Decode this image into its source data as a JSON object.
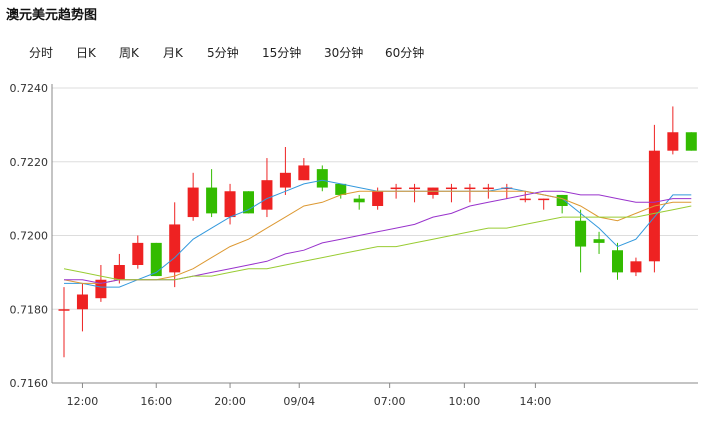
{
  "header": {
    "title": "澳元美元趋势图"
  },
  "tabs": [
    "分时",
    "日K",
    "周K",
    "月K",
    "5分钟",
    "15分钟",
    "30分钟",
    "60分钟"
  ],
  "chart_data": {
    "type": "candlestick",
    "title": "澳元美元趋势图",
    "ylim": [
      0.716,
      0.724
    ],
    "yticks": [
      "0.7240",
      "0.7220",
      "0.7200",
      "0.7180",
      "0.7160"
    ],
    "xticks": [
      {
        "label": "12:00",
        "index": 1
      },
      {
        "label": "16:00",
        "index": 5
      },
      {
        "label": "20:00",
        "index": 9
      },
      {
        "label": "09/04",
        "index": 12.75
      },
      {
        "label": "07:00",
        "index": 17.65
      },
      {
        "label": "10:00",
        "index": 21.7
      },
      {
        "label": "14:00",
        "index": 25.55
      }
    ],
    "up_color": "#ee2222",
    "down_color": "#33bb00",
    "candles": [
      {
        "o": 0.718,
        "h": 0.7186,
        "l": 0.7167,
        "c": 0.718
      },
      {
        "o": 0.718,
        "h": 0.7187,
        "l": 0.7174,
        "c": 0.7184
      },
      {
        "o": 0.7183,
        "h": 0.7192,
        "l": 0.7182,
        "c": 0.7188
      },
      {
        "o": 0.7188,
        "h": 0.7195,
        "l": 0.7187,
        "c": 0.7192
      },
      {
        "o": 0.7192,
        "h": 0.72,
        "l": 0.7191,
        "c": 0.7198
      },
      {
        "o": 0.7198,
        "h": 0.7198,
        "l": 0.7189,
        "c": 0.7189
      },
      {
        "o": 0.719,
        "h": 0.7209,
        "l": 0.7186,
        "c": 0.7203
      },
      {
        "o": 0.7205,
        "h": 0.7217,
        "l": 0.7204,
        "c": 0.7213
      },
      {
        "o": 0.7213,
        "h": 0.7218,
        "l": 0.7205,
        "c": 0.7206
      },
      {
        "o": 0.7205,
        "h": 0.7214,
        "l": 0.7203,
        "c": 0.7212
      },
      {
        "o": 0.7212,
        "h": 0.7212,
        "l": 0.7206,
        "c": 0.7206
      },
      {
        "o": 0.7207,
        "h": 0.7221,
        "l": 0.7205,
        "c": 0.7215
      },
      {
        "o": 0.7213,
        "h": 0.7224,
        "l": 0.7211,
        "c": 0.7217
      },
      {
        "o": 0.7215,
        "h": 0.7221,
        "l": 0.7215,
        "c": 0.7219
      },
      {
        "o": 0.7218,
        "h": 0.7219,
        "l": 0.7212,
        "c": 0.7213
      },
      {
        "o": 0.7214,
        "h": 0.7214,
        "l": 0.721,
        "c": 0.7211
      },
      {
        "o": 0.721,
        "h": 0.7211,
        "l": 0.7207,
        "c": 0.7209
      },
      {
        "o": 0.7208,
        "h": 0.7213,
        "l": 0.7207,
        "c": 0.7212
      },
      {
        "o": 0.7213,
        "h": 0.7214,
        "l": 0.721,
        "c": 0.7213
      },
      {
        "o": 0.7213,
        "h": 0.7214,
        "l": 0.7209,
        "c": 0.7213
      },
      {
        "o": 0.7211,
        "h": 0.7213,
        "l": 0.721,
        "c": 0.7213
      },
      {
        "o": 0.7213,
        "h": 0.7214,
        "l": 0.7209,
        "c": 0.7213
      },
      {
        "o": 0.7213,
        "h": 0.7214,
        "l": 0.7209,
        "c": 0.7213
      },
      {
        "o": 0.7213,
        "h": 0.7214,
        "l": 0.721,
        "c": 0.7213
      },
      {
        "o": 0.7213,
        "h": 0.7214,
        "l": 0.721,
        "c": 0.7213
      },
      {
        "o": 0.721,
        "h": 0.7212,
        "l": 0.7209,
        "c": 0.721
      },
      {
        "o": 0.721,
        "h": 0.721,
        "l": 0.7207,
        "c": 0.721
      },
      {
        "o": 0.7211,
        "h": 0.7211,
        "l": 0.7206,
        "c": 0.7208
      },
      {
        "o": 0.7204,
        "h": 0.7207,
        "l": 0.719,
        "c": 0.7197
      },
      {
        "o": 0.7199,
        "h": 0.7201,
        "l": 0.7195,
        "c": 0.7198
      },
      {
        "o": 0.7196,
        "h": 0.7198,
        "l": 0.7188,
        "c": 0.719
      },
      {
        "o": 0.719,
        "h": 0.7194,
        "l": 0.7189,
        "c": 0.7193
      },
      {
        "o": 0.7193,
        "h": 0.723,
        "l": 0.719,
        "c": 0.7223
      },
      {
        "o": 0.7223,
        "h": 0.7235,
        "l": 0.7222,
        "c": 0.7228
      },
      {
        "o": 0.7228,
        "h": 0.7228,
        "l": 0.7223,
        "c": 0.7223
      }
    ],
    "series": [
      {
        "color": "#3399dd",
        "values": [
          0.7187,
          0.7187,
          0.7186,
          0.7186,
          0.7188,
          0.719,
          0.7194,
          0.7199,
          0.7202,
          0.7205,
          0.7207,
          0.721,
          0.7212,
          0.7214,
          0.7215,
          0.7214,
          0.7213,
          0.7212,
          0.7212,
          0.7212,
          0.7212,
          0.7212,
          0.7212,
          0.7212,
          0.7213,
          0.7212,
          0.7211,
          0.721,
          0.7206,
          0.7202,
          0.7197,
          0.7199,
          0.7205,
          0.7211,
          0.7211
        ]
      },
      {
        "color": "#dd9933",
        "values": [
          0.7188,
          0.7187,
          0.7187,
          0.7188,
          0.7188,
          0.7188,
          0.7189,
          0.7191,
          0.7194,
          0.7197,
          0.7199,
          0.7202,
          0.7205,
          0.7208,
          0.7209,
          0.7211,
          0.7212,
          0.7212,
          0.7212,
          0.7212,
          0.7212,
          0.7212,
          0.7212,
          0.7212,
          0.7212,
          0.7212,
          0.7211,
          0.721,
          0.7208,
          0.7205,
          0.7204,
          0.7206,
          0.7208,
          0.7209,
          0.7209
        ]
      },
      {
        "color": "#9933cc",
        "values": [
          0.7188,
          0.7188,
          0.7187,
          0.7188,
          0.7188,
          0.7188,
          0.7188,
          0.7189,
          0.719,
          0.7191,
          0.7192,
          0.7193,
          0.7195,
          0.7196,
          0.7198,
          0.7199,
          0.72,
          0.7201,
          0.7202,
          0.7203,
          0.7205,
          0.7206,
          0.7208,
          0.7209,
          0.721,
          0.7211,
          0.7212,
          0.7212,
          0.7211,
          0.7211,
          0.721,
          0.7209,
          0.7209,
          0.721,
          0.721
        ]
      },
      {
        "color": "#99cc33",
        "values": [
          0.7191,
          0.719,
          0.7189,
          0.7188,
          0.7188,
          0.7188,
          0.7188,
          0.7189,
          0.7189,
          0.719,
          0.7191,
          0.7191,
          0.7192,
          0.7193,
          0.7194,
          0.7195,
          0.7196,
          0.7197,
          0.7197,
          0.7198,
          0.7199,
          0.72,
          0.7201,
          0.7202,
          0.7202,
          0.7203,
          0.7204,
          0.7205,
          0.7205,
          0.7205,
          0.7205,
          0.7205,
          0.7206,
          0.7207,
          0.7208
        ]
      }
    ]
  }
}
